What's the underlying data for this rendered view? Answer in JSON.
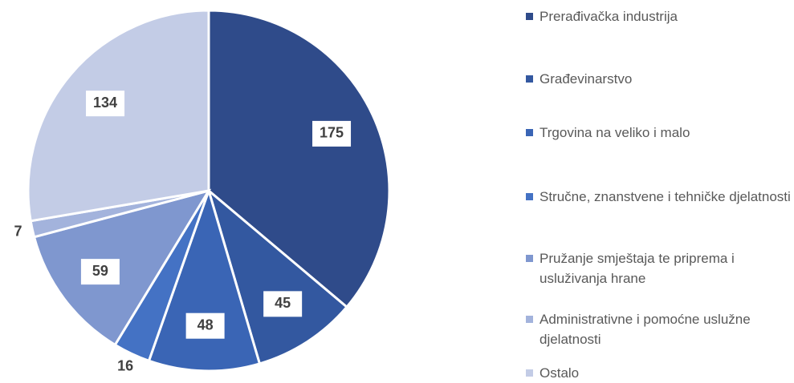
{
  "chart_data": {
    "type": "pie",
    "categories": [
      "Prerađivačka industrija",
      "Građevinarstvo",
      "Trgovina na veliko i malo",
      "Stručne, znanstvene i tehničke djelatnosti",
      "Pružanje smještaja te priprema i usluživanja hrane",
      "Administrativne i pomoćne uslužne djelatnosti",
      "Ostalo"
    ],
    "values": [
      175,
      45,
      48,
      16,
      59,
      7,
      134
    ],
    "colors": [
      "#2f4b8a",
      "#3358a0",
      "#3a65b5",
      "#4472c4",
      "#7f97cf",
      "#a3b3dc",
      "#c3cce6"
    ],
    "legend": "right"
  }
}
